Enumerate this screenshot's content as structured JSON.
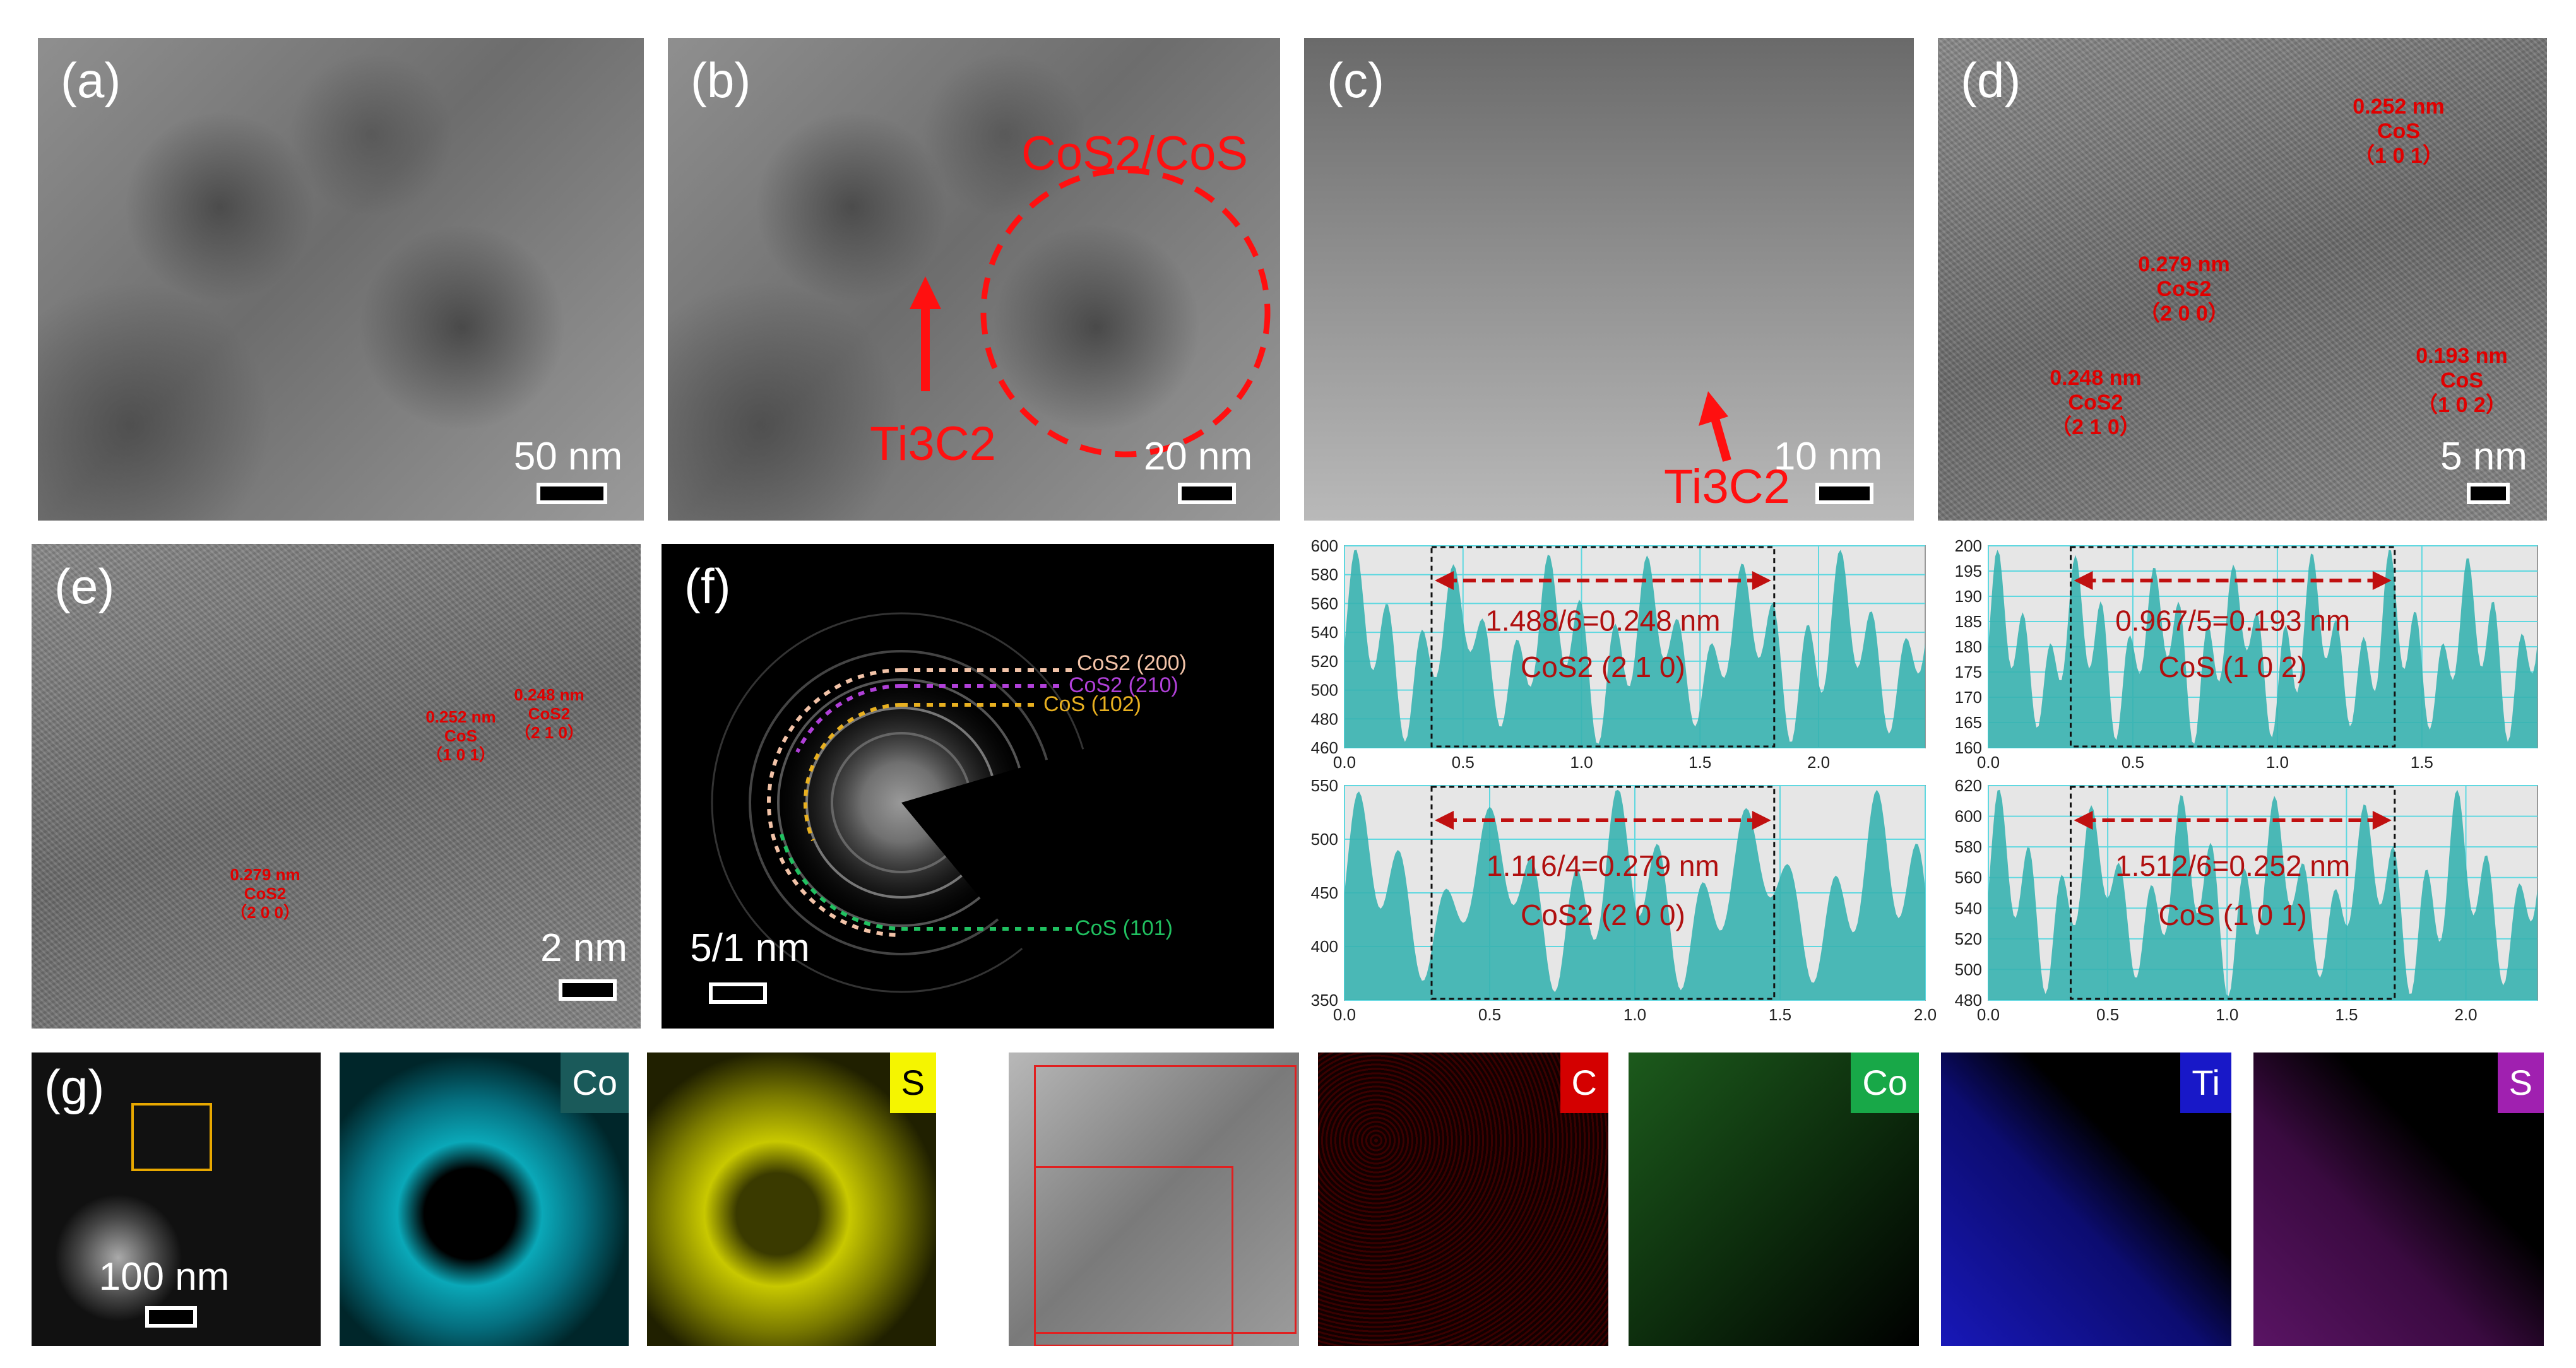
{
  "panels": {
    "a": {
      "label": "(a)",
      "scale": "50 nm"
    },
    "b": {
      "label": "(b)",
      "scale": "20 nm",
      "ring_label": "CoS2/CoS",
      "arrow_label": "Ti3C2"
    },
    "c": {
      "label": "(c)",
      "scale": "10 nm",
      "arrow_label": "Ti3C2"
    },
    "d": {
      "label": "(d)",
      "scale": "5 nm",
      "annotations": [
        {
          "d": "0.252 nm",
          "phase": "CoS",
          "hkl": "（1 0 1）"
        },
        {
          "d": "0.279 nm",
          "phase": "CoS2",
          "hkl": "（2 0 0）"
        },
        {
          "d": "0.248 nm",
          "phase": "CoS2",
          "hkl": "（2 1 0）"
        },
        {
          "d": "0.193 nm",
          "phase": "CoS",
          "hkl": "（1 0 2）"
        }
      ]
    },
    "e": {
      "label": "(e)",
      "scale": "2 nm",
      "annotations": [
        {
          "d": "0.252 nm",
          "phase": "CoS",
          "hkl": "（1 0 1）"
        },
        {
          "d": "0.248 nm",
          "phase": "CoS2",
          "hkl": "（2 1 0）"
        },
        {
          "d": "0.279 nm",
          "phase": "CoS2",
          "hkl": "（2 0 0）"
        }
      ]
    },
    "f": {
      "label": "(f)",
      "scale": "5/1 nm",
      "rings": [
        {
          "text": "CoS2 (200)",
          "color": "#f2c3a8"
        },
        {
          "text": "CoS2 (210)",
          "color": "#b040d8"
        },
        {
          "text": "CoS (102)",
          "color": "#e8b020"
        },
        {
          "text": "CoS (101)",
          "color": "#20c060"
        }
      ]
    },
    "g": {
      "label": "(g)",
      "scale": "100 nm",
      "maps_left": [
        {
          "element": "Co",
          "color": "#1a5a5a"
        },
        {
          "element": "S",
          "color": "#f5f500"
        }
      ],
      "maps_right": [
        {
          "element": "C",
          "color": "#d40000"
        },
        {
          "element": "Co",
          "color": "#18a848"
        },
        {
          "element": "Ti",
          "color": "#1818c8"
        },
        {
          "element": "S",
          "color": "#a020b0"
        }
      ]
    }
  },
  "chart_data": [
    {
      "type": "area",
      "formula": "1.488/6=0.248 nm",
      "phase": "CoS2 (2 1 0)",
      "ylim": [
        460,
        600
      ],
      "yticks": [
        "600",
        "580",
        "560",
        "540",
        "520",
        "500",
        "480",
        "460"
      ],
      "xlim": [
        0,
        2.45
      ],
      "xticks": [
        "0.0",
        "0.5",
        "1.0",
        "1.5",
        "2.0"
      ]
    },
    {
      "type": "area",
      "formula": "0.967/5=0.193 nm",
      "phase": "CoS (1 0 2)",
      "ylim": [
        160,
        200
      ],
      "yticks": [
        "200",
        "195",
        "190",
        "185",
        "180",
        "175",
        "170",
        "165",
        "160"
      ],
      "xlim": [
        0,
        1.9
      ],
      "xticks": [
        "0.0",
        "0.5",
        "1.0",
        "1.5"
      ]
    },
    {
      "type": "area",
      "formula": "1.116/4=0.279 nm",
      "phase": "CoS2 (2 0 0)",
      "ylim": [
        350,
        550
      ],
      "yticks": [
        "550",
        "500",
        "450",
        "400",
        "350"
      ],
      "xlim": [
        0,
        2.0
      ],
      "xticks": [
        "0.0",
        "0.5",
        "1.0",
        "1.5",
        "2.0"
      ]
    },
    {
      "type": "area",
      "formula": "1.512/6=0.252 nm",
      "phase": "CoS (1 0 1)",
      "ylim": [
        480,
        620
      ],
      "yticks": [
        "620",
        "600",
        "580",
        "560",
        "540",
        "520",
        "500",
        "480"
      ],
      "xlim": [
        0,
        2.3
      ],
      "xticks": [
        "0.0",
        "0.5",
        "1.0",
        "1.5",
        "2.0"
      ]
    }
  ]
}
